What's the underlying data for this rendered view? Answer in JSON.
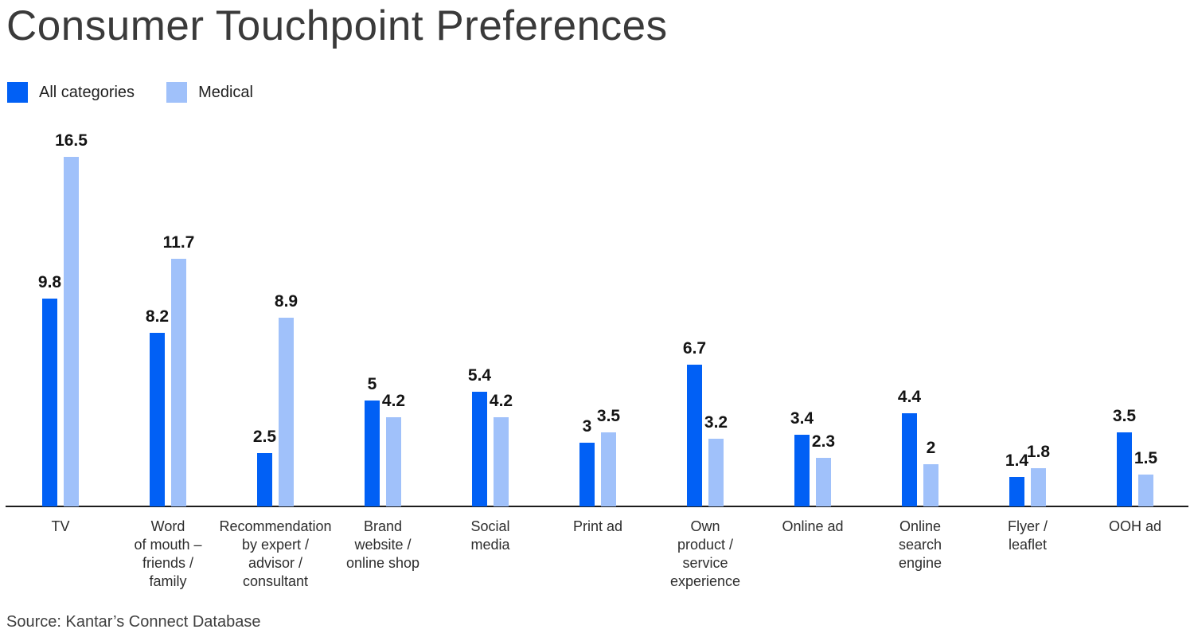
{
  "source": "Source: Kantar’s Connect Database",
  "colors": {
    "all_categories": "#0160f5",
    "medical": "#a0c1fa",
    "axis": "#1c1c1c",
    "title_text": "#3a3a3a"
  },
  "chart_data": {
    "type": "bar",
    "title": "Consumer Touchpoint Preferences",
    "categories": [
      "TV",
      "Word of mouth – friends / family",
      "Recommendation by expert / advisor / consultant",
      "Brand website / online shop",
      "Social media",
      "Print ad",
      "Own product / service experience",
      "Online ad",
      "Online search engine",
      "Flyer / leaflet",
      "OOH ad"
    ],
    "category_lines": [
      [
        "TV"
      ],
      [
        "Word",
        "of mouth –",
        "friends /",
        "family"
      ],
      [
        "Recommendation",
        "by expert /",
        "advisor /",
        "consultant"
      ],
      [
        "Brand",
        "website /",
        "online shop"
      ],
      [
        "Social",
        "media"
      ],
      [
        "Print ad"
      ],
      [
        "Own",
        "product /",
        "service",
        "experience"
      ],
      [
        "Online ad"
      ],
      [
        "Online",
        "search",
        "engine"
      ],
      [
        "Flyer /",
        "leaflet"
      ],
      [
        "OOH ad"
      ]
    ],
    "series": [
      {
        "name": "All categories",
        "color": "#0160f5",
        "values": [
          9.8,
          8.2,
          2.5,
          5,
          5.4,
          3,
          6.7,
          3.4,
          4.4,
          1.4,
          3.5
        ]
      },
      {
        "name": "Medical",
        "color": "#a0c1fa",
        "values": [
          16.5,
          11.7,
          8.9,
          4.2,
          4.2,
          3.5,
          3.2,
          2.3,
          2,
          1.8,
          1.5
        ]
      }
    ],
    "ylim": [
      0,
      18.5
    ],
    "xlabel": "",
    "ylabel": "",
    "grid": false,
    "legend_position": "top-left",
    "value_labels": true
  }
}
